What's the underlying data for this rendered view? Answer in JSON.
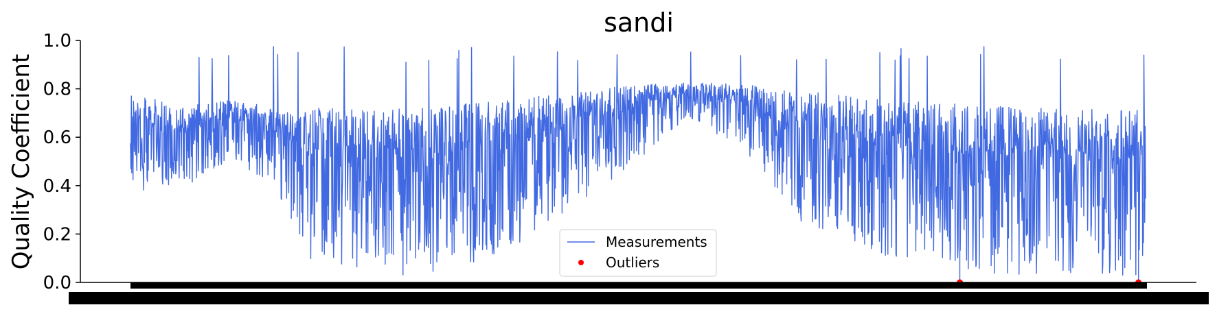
{
  "chart_data": {
    "type": "line",
    "title": "sandi",
    "xlabel": "",
    "ylabel": "Quality Coefficient",
    "ylim": [
      0.0,
      1.0
    ],
    "yticks": [
      "0.0",
      "0.2",
      "0.4",
      "0.6",
      "0.8",
      "1.0"
    ],
    "x_tick_labels_note": "",
    "grid": false,
    "legend_position": "bottom-center",
    "colors": {
      "series": "#4169E1",
      "outliers": "#ff0000"
    },
    "series": [
      {
        "name": "Measurements",
        "style": "line",
        "n_points": 2400,
        "envelope": [
          {
            "x_frac": 0.0,
            "mean": 0.66,
            "spread": 0.28
          },
          {
            "x_frac": 0.05,
            "mean": 0.62,
            "spread": 0.24
          },
          {
            "x_frac": 0.1,
            "mean": 0.68,
            "spread": 0.18
          },
          {
            "x_frac": 0.14,
            "mean": 0.62,
            "spread": 0.22
          },
          {
            "x_frac": 0.18,
            "mean": 0.52,
            "spread": 0.45
          },
          {
            "x_frac": 0.28,
            "mean": 0.5,
            "spread": 0.48
          },
          {
            "x_frac": 0.36,
            "mean": 0.55,
            "spread": 0.45
          },
          {
            "x_frac": 0.42,
            "mean": 0.62,
            "spread": 0.35
          },
          {
            "x_frac": 0.5,
            "mean": 0.72,
            "spread": 0.22
          },
          {
            "x_frac": 0.55,
            "mean": 0.78,
            "spread": 0.1
          },
          {
            "x_frac": 0.6,
            "mean": 0.74,
            "spread": 0.18
          },
          {
            "x_frac": 0.66,
            "mean": 0.62,
            "spread": 0.38
          },
          {
            "x_frac": 0.75,
            "mean": 0.55,
            "spread": 0.45
          },
          {
            "x_frac": 0.83,
            "mean": 0.52,
            "spread": 0.48
          },
          {
            "x_frac": 0.92,
            "mean": 0.5,
            "spread": 0.48
          },
          {
            "x_frac": 1.0,
            "mean": 0.5,
            "spread": 0.48
          }
        ]
      },
      {
        "name": "Outliers",
        "style": "points",
        "points": [
          {
            "x_frac": 0.817,
            "y": 0.0
          },
          {
            "x_frac": 0.993,
            "y": 0.0
          }
        ]
      }
    ]
  }
}
